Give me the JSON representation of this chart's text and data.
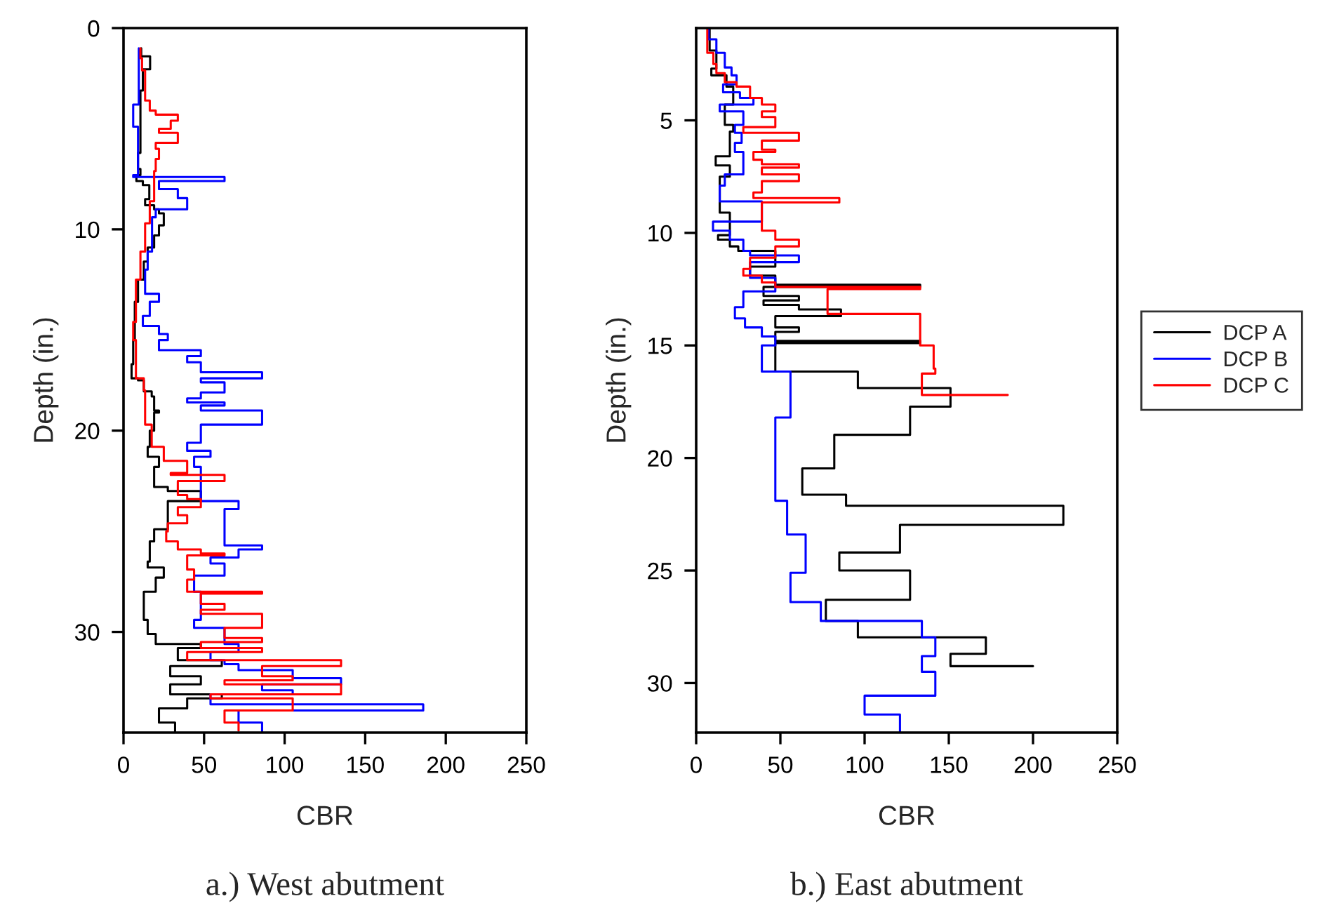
{
  "chart_data": [
    {
      "type": "step",
      "title": "a.) West abutment",
      "xlabel": "CBR",
      "ylabel": "Depth (in.)",
      "xlim": [
        0,
        250
      ],
      "xticks": [
        0,
        50,
        100,
        150,
        200,
        250
      ],
      "ylim": [
        35,
        0
      ],
      "yticks": [
        0,
        10,
        20,
        30
      ],
      "grid": false,
      "series": [
        {
          "color": "#000000",
          "x": [
            11,
            16.5,
            12,
            10.5,
            9,
            10.5,
            8,
            12,
            16,
            13.4,
            19,
            22,
            25,
            22,
            19,
            15,
            12.6,
            9,
            7,
            6,
            5,
            9,
            12.6,
            17.5,
            19,
            22,
            19,
            16.3,
            15,
            22,
            19,
            27.5,
            48,
            27.5,
            19,
            16.3,
            15,
            25,
            20,
            12.6,
            15,
            20,
            48,
            33.7,
            61,
            29,
            48,
            29,
            61,
            39.5,
            22,
            32,
            32
          ],
          "values": [
            1.0,
            1.4,
            2.05,
            3.1,
            6.2,
            7.0,
            7.3,
            7.6,
            7.8,
            8.5,
            8.8,
            9.0,
            9.2,
            9.8,
            10.3,
            10.9,
            11.6,
            12.5,
            13.6,
            15.5,
            16.7,
            17.4,
            17.5,
            18.05,
            18.3,
            19.0,
            19.1,
            20.0,
            20.8,
            21.3,
            21.8,
            22.8,
            23.0,
            23.5,
            24.9,
            25.5,
            26.5,
            26.8,
            27.3,
            28.0,
            29.4,
            30.1,
            30.6,
            30.8,
            31.4,
            31.7,
            32.2,
            32.6,
            33.1,
            33.3,
            33.8,
            34.5,
            35.0
          ]
        },
        {
          "color": "#0000ff",
          "x": [
            9.5,
            6,
            9,
            6,
            62.7,
            22,
            33.7,
            39.5,
            20,
            17.7,
            15,
            13.4,
            22,
            16.3,
            12,
            22,
            27.5,
            22,
            48,
            39.5,
            48,
            86,
            48,
            62.7,
            48,
            39.5,
            62.7,
            48,
            86,
            48,
            39.5,
            54,
            43.8,
            48,
            71.4,
            62.7,
            86,
            71.4,
            54,
            62.7,
            43.8,
            48,
            43.8,
            62.7,
            71.4,
            54,
            62.7,
            71.4,
            105,
            135,
            86,
            105,
            54,
            186,
            71.4,
            86,
            86
          ],
          "values": [
            1.0,
            3.8,
            4.9,
            7.3,
            7.4,
            7.6,
            8.0,
            8.45,
            9.0,
            9.4,
            11.1,
            12.0,
            13.2,
            13.6,
            14.3,
            14.8,
            15.2,
            15.5,
            16.0,
            16.3,
            16.6,
            17.1,
            17.4,
            17.6,
            18.1,
            18.4,
            18.6,
            18.75,
            19.0,
            19.7,
            20.6,
            21.0,
            21.3,
            21.8,
            23.5,
            23.9,
            25.7,
            25.9,
            26.3,
            26.6,
            27.2,
            28.0,
            29.4,
            29.8,
            30.6,
            31.0,
            31.4,
            31.6,
            31.9,
            32.3,
            32.6,
            32.9,
            33.1,
            33.6,
            33.9,
            34.5,
            35.0
          ]
        },
        {
          "color": "#ff0000",
          "x": [
            10.5,
            11.5,
            13.4,
            16.3,
            20,
            33.7,
            29.3,
            22,
            33.7,
            20,
            22,
            20,
            19,
            16.3,
            13.4,
            10.5,
            7.7,
            6,
            7.7,
            12.6,
            13.4,
            17.5,
            25,
            39.5,
            29.3,
            62.7,
            33.7,
            39.5,
            48,
            33.7,
            39.5,
            27.5,
            26.5,
            33.7,
            48,
            62.7,
            39.5,
            43.8,
            39.5,
            86,
            48,
            62.7,
            48,
            86,
            62.7,
            86,
            48,
            86,
            39.5,
            135,
            86,
            105,
            62.7,
            135,
            54,
            105,
            62.7,
            71.4,
            71.4
          ],
          "values": [
            1.0,
            1.5,
            2.1,
            3.6,
            4.1,
            4.3,
            4.6,
            5.0,
            5.2,
            5.7,
            6.0,
            6.5,
            7.1,
            8.6,
            9.7,
            11.1,
            12.5,
            14.6,
            15.5,
            17.4,
            18.0,
            19.7,
            20.8,
            21.5,
            22.1,
            22.2,
            22.5,
            23.2,
            23.4,
            23.8,
            24.2,
            24.6,
            25.0,
            25.5,
            25.9,
            26.1,
            26.2,
            26.9,
            27.4,
            28.0,
            28.1,
            28.6,
            28.9,
            29.1,
            29.8,
            30.3,
            30.5,
            30.8,
            31.0,
            31.4,
            31.7,
            32.2,
            32.4,
            32.6,
            33.1,
            33.3,
            33.9,
            34.5,
            34.9
          ]
        }
      ]
    },
    {
      "type": "step",
      "title": "b.) East abutment",
      "xlabel": "CBR",
      "ylabel": "Depth (in.)",
      "xlim": [
        0,
        250
      ],
      "xticks": [
        0,
        50,
        100,
        150,
        200,
        250
      ],
      "ylim": [
        32.2,
        0.9
      ],
      "yticks": [
        5,
        10,
        15,
        20,
        25,
        30
      ],
      "grid": false,
      "legend": "right",
      "series": [
        {
          "name": "DCP A",
          "color": "#000000",
          "x": [
            8,
            12,
            9,
            18,
            22,
            17,
            22,
            20,
            11.6,
            20,
            14,
            20,
            13,
            20,
            25,
            47,
            32,
            47,
            133,
            40,
            61,
            40,
            61,
            86,
            47,
            61,
            47,
            133,
            47,
            96,
            151,
            127,
            82,
            63,
            89,
            218,
            121,
            85,
            127,
            77,
            96,
            172,
            151,
            200
          ],
          "values": [
            0.9,
            1.9,
            2.7,
            3.0,
            3.5,
            4.3,
            5.2,
            5.5,
            6.6,
            7.0,
            7.5,
            9.1,
            10.1,
            10.3,
            10.6,
            10.8,
            11.5,
            11.9,
            12.3,
            12.4,
            12.8,
            13.0,
            13.2,
            13.4,
            13.7,
            14.2,
            14.4,
            14.8,
            14.9,
            16.16,
            16.89,
            17.72,
            18.97,
            20.46,
            21.63,
            22.12,
            22.97,
            24.2,
            25.0,
            26.3,
            27.24,
            27.97,
            28.7,
            29.25
          ]
        },
        {
          "name": "DCP B",
          "color": "#0000ff",
          "x": [
            7.4,
            12,
            17,
            21,
            24,
            16,
            26,
            34,
            14,
            28,
            23,
            27,
            23,
            28,
            17,
            14,
            39,
            10,
            20,
            28,
            32,
            61,
            32,
            47,
            28,
            23,
            29,
            39,
            47,
            39,
            56,
            47,
            54,
            65,
            56,
            74,
            134,
            142,
            134,
            142,
            100,
            121,
            121
          ],
          "values": [
            0.9,
            1.4,
            2.0,
            2.65,
            3.0,
            3.4,
            3.75,
            4.0,
            4.3,
            4.6,
            5.2,
            5.55,
            6.0,
            6.4,
            7.4,
            7.9,
            8.6,
            9.5,
            9.9,
            10.3,
            10.8,
            11.0,
            11.3,
            12.0,
            12.6,
            13.3,
            13.8,
            14.2,
            14.6,
            15.0,
            16.16,
            18.2,
            21.9,
            23.4,
            25.1,
            26.4,
            27.24,
            27.97,
            28.8,
            29.5,
            30.56,
            31.4,
            32.16
          ]
        },
        {
          "name": "DCP C",
          "color": "#ff0000",
          "x": [
            6.6,
            10.2,
            12,
            17,
            24,
            32,
            39,
            47,
            39,
            47,
            28,
            61,
            39,
            47,
            34,
            39,
            61,
            39,
            61,
            39,
            34,
            85,
            39,
            47,
            61,
            47,
            32,
            28,
            39,
            47,
            133,
            78,
            133,
            141,
            142,
            134,
            185
          ],
          "values": [
            0.9,
            2.0,
            2.5,
            2.9,
            3.3,
            3.5,
            4.0,
            4.3,
            4.6,
            4.85,
            5.3,
            5.55,
            5.9,
            6.3,
            6.4,
            6.75,
            6.95,
            7.1,
            7.4,
            7.7,
            8.2,
            8.45,
            8.65,
            9.9,
            10.3,
            10.6,
            11.1,
            11.6,
            11.9,
            12.2,
            12.4,
            12.5,
            13.6,
            15.0,
            16.03,
            16.25,
            17.2
          ]
        }
      ]
    }
  ]
}
